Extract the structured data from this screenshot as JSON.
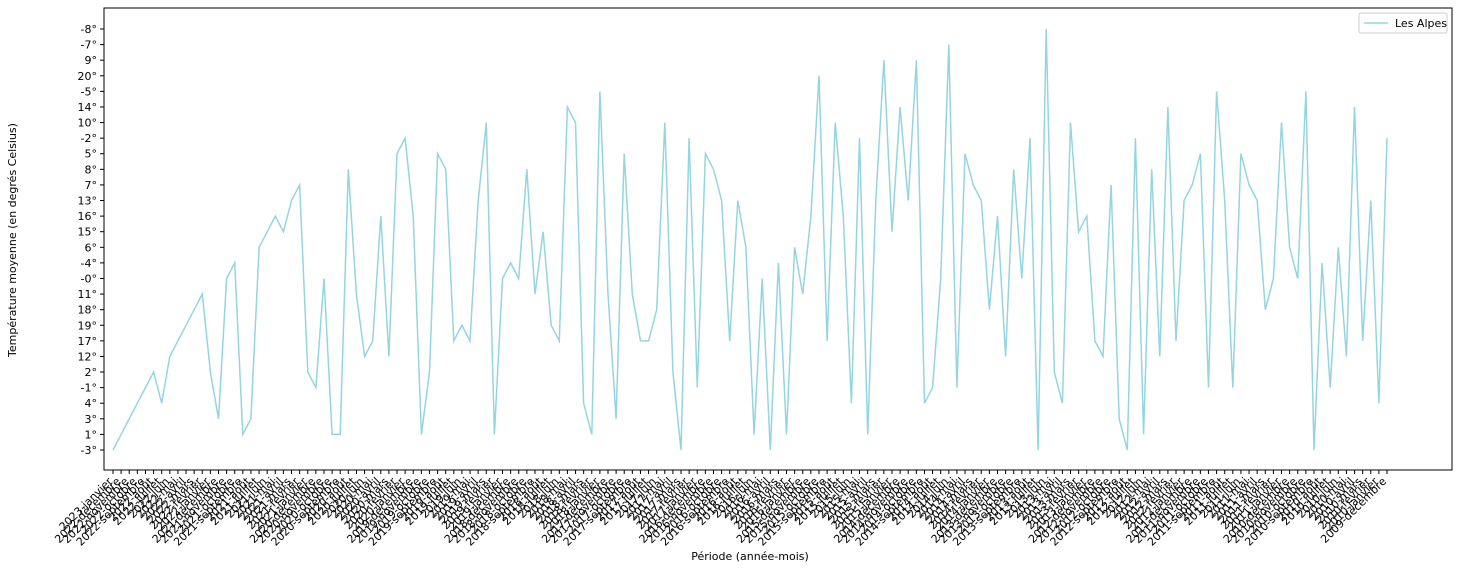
{
  "chart_data": {
    "type": "line",
    "x_label": "Période (année-mois)",
    "y_label": "Température moyenne (en degrés Celsius)",
    "legend": "upper right",
    "y_categories": [
      "-3°",
      "1°",
      "3°",
      "4°",
      "-1°",
      "2°",
      "12°",
      "17°",
      "19°",
      "18°",
      "11°",
      "-0°",
      "-4°",
      "6°",
      "15°",
      "16°",
      "13°",
      "7°",
      "8°",
      "5°",
      "-2°",
      "10°",
      "14°",
      "-5°",
      "20°",
      "9°",
      "-7°",
      "-8°"
    ],
    "categories": [
      "2023-janvier",
      "2022-décembre",
      "2022-novembre",
      "2022-octobre",
      "2022-septembre",
      "2022-août",
      "2022-juillet",
      "2022-juin",
      "2022-mai",
      "2022-avril",
      "2022-mars",
      "2022-février",
      "2022-janvier",
      "2021-décembre",
      "2021-novembre",
      "2021-octobre",
      "2021-septembre",
      "2021-août",
      "2021-juillet",
      "2021-juin",
      "2021-mai",
      "2021-avril",
      "2021-mars",
      "2021-février",
      "2021-janvier",
      "2020-décembre",
      "2020-novembre",
      "2020-octobre",
      "2020-septembre",
      "2020-août",
      "2020-juillet",
      "2020-juin",
      "2020-mai",
      "2020-avril",
      "2020-mars",
      "2020-février",
      "2020-janvier",
      "2019-décembre",
      "2019-novembre",
      "2019-octobre",
      "2019-septembre",
      "2019-août",
      "2019-juillet",
      "2019-juin",
      "2019-mai",
      "2019-avril",
      "2019-mars",
      "2019-février",
      "2019-janvier",
      "2018-décembre",
      "2018-novembre",
      "2018-octobre",
      "2018-septembre",
      "2018-août",
      "2018-juillet",
      "2018-juin",
      "2018-mai",
      "2018-avril",
      "2018-mars",
      "2018-février",
      "2018-janvier",
      "2017-décembre",
      "2017-novembre",
      "2017-octobre",
      "2017-septembre",
      "2017-août",
      "2017-juillet",
      "2017-juin",
      "2017-mai",
      "2017-avril",
      "2017-mars",
      "2017-février",
      "2017-janvier",
      "2016-décembre",
      "2016-novembre",
      "2016-octobre",
      "2016-septembre",
      "2016-août",
      "2016-juillet",
      "2016-juin",
      "2016-mai",
      "2016-avril",
      "2016-mars",
      "2016-février",
      "2016-janvier",
      "2015-décembre",
      "2015-novembre",
      "2015-octobre",
      "2015-septembre",
      "2015-août",
      "2015-juillet",
      "2015-juin",
      "2015-mai",
      "2015-avril",
      "2015-mars",
      "2015-février",
      "2015-janvier",
      "2014-décembre",
      "2014-novembre",
      "2014-octobre",
      "2014-septembre",
      "2014-août",
      "2014-juillet",
      "2014-juin",
      "2014-mai",
      "2014-avril",
      "2014-mars",
      "2014-février",
      "2014-janvier",
      "2013-décembre",
      "2013-novembre",
      "2013-octobre",
      "2013-septembre",
      "2013-août",
      "2013-juillet",
      "2013-juin",
      "2013-mai",
      "2013-avril",
      "2013-mars",
      "2013-février",
      "2013-janvier",
      "2012-décembre",
      "2012-novembre",
      "2012-octobre",
      "2012-septembre",
      "2012-août",
      "2012-juillet",
      "2012-juin",
      "2012-mai",
      "2012-avril",
      "2012-mars",
      "2012-février",
      "2012-janvier",
      "2011-décembre",
      "2011-novembre",
      "2011-octobre",
      "2011-septembre",
      "2011-août",
      "2011-juillet",
      "2011-juin",
      "2011-mai",
      "2011-avril",
      "2011-mars",
      "2011-février",
      "2011-janvier",
      "2010-décembre",
      "2010-novembre",
      "2010-octobre",
      "2010-septembre",
      "2010-août",
      "2010-juillet",
      "2010-juin",
      "2010-mai",
      "2010-avril",
      "2010-mars",
      "2010-février",
      "2010-janvier",
      "2009-décembre"
    ],
    "series": [
      {
        "name": "Les Alpes",
        "color": "#94d5e1",
        "values": [
          "-3°",
          "1°",
          "3°",
          "4°",
          "-1°",
          "2°",
          "4°",
          "12°",
          "17°",
          "19°",
          "18°",
          "11°",
          "2°",
          "3°",
          "-0°",
          "-4°",
          "1°",
          "3°",
          "6°",
          "15°",
          "16°",
          "15°",
          "13°",
          "7°",
          "2°",
          "-1°",
          "-0°",
          "1°",
          "1°",
          "8°",
          "11°",
          "12°",
          "17°",
          "16°",
          "12°",
          "5°",
          "-2°",
          "16°",
          "1°",
          "2°",
          "5°",
          "8°",
          "17°",
          "19°",
          "17°",
          "13°",
          "10°",
          "1°",
          "-0°",
          "-4°",
          "-0°",
          "8°",
          "11°",
          "15°",
          "19°",
          "17°",
          "14°",
          "10°",
          "4°",
          "1°",
          "-5°",
          "11°",
          "3°",
          "5°",
          "11°",
          "17°",
          "17°",
          "18°",
          "10°",
          "2°",
          "-3°",
          "-2°",
          "-1°",
          "5°",
          "8°",
          "13°",
          "17°",
          "13°",
          "6°",
          "1°",
          "-0°",
          "-3°",
          "-4°",
          "1°",
          "6°",
          "11°",
          "16°",
          "20°",
          "17°",
          "10°",
          "16°",
          "4°",
          "-2°",
          "1°",
          "13°",
          "9°",
          "15°",
          "14°",
          "13°",
          "9°",
          "4°",
          "-1°",
          "-0°",
          "-7°",
          "-1°",
          "5°",
          "7°",
          "13°",
          "18°",
          "16°",
          "12°",
          "8°",
          "-0°",
          "-2°",
          "-3°",
          "-8°",
          "2°",
          "4°",
          "10°",
          "15°",
          "16°",
          "17°",
          "12°",
          "7°",
          "3°",
          "-3°",
          "-2°",
          "1°",
          "8°",
          "12°",
          "14°",
          "17°",
          "13°",
          "7°",
          "5°",
          "-1°",
          "-5°",
          "13°",
          "-1°",
          "5°",
          "7°",
          "13°",
          "18°",
          "-0°",
          "10°",
          "6°",
          "-0°",
          "-5°",
          "-3°",
          "-4°",
          "-1°",
          "6°",
          "12°",
          "14°",
          "17°",
          "13°",
          "4°",
          "-2°"
        ]
      }
    ]
  }
}
